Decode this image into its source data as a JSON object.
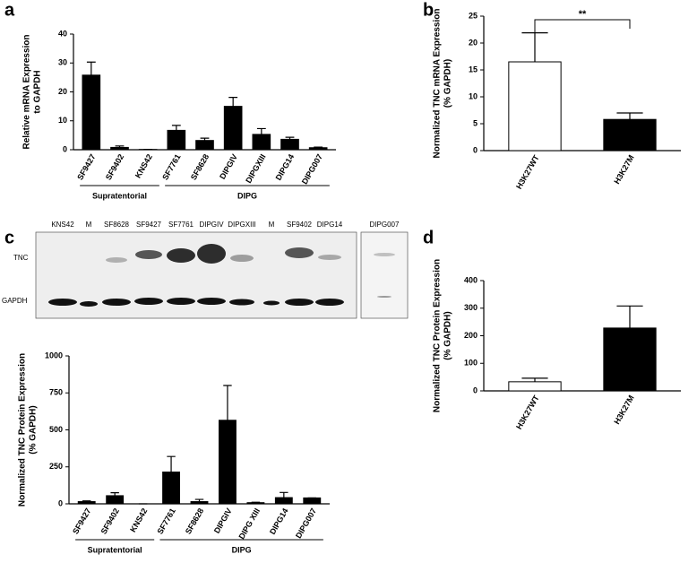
{
  "chart_data": [
    {
      "type": "bar",
      "panel": "a",
      "ylabel": [
        "Relative mRNA Expression",
        "to GAPDH"
      ],
      "categories": [
        "SF9427",
        "SF9402",
        "KNS42",
        "SF7761",
        "SF8628",
        "DIPGIV",
        "DIPGXIII",
        "DIPG14",
        "DIPG007"
      ],
      "values": [
        25.8,
        0.8,
        0.1,
        6.7,
        3.2,
        15.0,
        5.3,
        3.6,
        0.7
      ],
      "errors": [
        4.5,
        0.5,
        0,
        1.7,
        0.8,
        3.1,
        2.0,
        0.7,
        0.2
      ],
      "color": "#000000",
      "ylim": [
        0,
        40
      ],
      "yticks": [
        0,
        10,
        20,
        30,
        40
      ],
      "groups": [
        {
          "label": "Supratentorial",
          "members": [
            "SF9427",
            "SF9402",
            "KNS42"
          ]
        },
        {
          "label": "DIPG",
          "members": [
            "SF7761",
            "SF8628",
            "DIPGIV",
            "DIPGXIII",
            "DIPG14",
            "DIPG007"
          ]
        }
      ]
    },
    {
      "type": "bar",
      "panel": "b",
      "ylabel": [
        "Normalized TNC mRNA Expression",
        "(% GAPDH)"
      ],
      "categories": [
        "H3K27WT",
        "H3K27M"
      ],
      "values": [
        16.5,
        5.8
      ],
      "errors": [
        5.4,
        1.2
      ],
      "colors": [
        "#ffffff",
        "#000000"
      ],
      "ylim": [
        0,
        25
      ],
      "yticks": [
        0,
        5,
        10,
        15,
        20,
        25
      ],
      "annotation": "**"
    },
    {
      "type": "bar",
      "panel": "c",
      "ylabel": [
        "Normalized TNC Protein Expression",
        "(% GAPDH)"
      ],
      "categories": [
        "SF9427",
        "SF9402",
        "KNS42",
        "SF7761",
        "SF8628",
        "DIPGIV",
        "DIPG XIII",
        "DIPG14",
        "DIPG007"
      ],
      "values": [
        15,
        55,
        0,
        215,
        15,
        565,
        8,
        42,
        40
      ],
      "errors": [
        5,
        20,
        0,
        105,
        15,
        235,
        3,
        35,
        0
      ],
      "color": "#000000",
      "ylim": [
        0,
        1000
      ],
      "yticks": [
        0,
        250,
        500,
        750,
        1000
      ],
      "groups": [
        {
          "label": "Supratentorial",
          "members": [
            "SF9427",
            "SF9402",
            "KNS42"
          ]
        },
        {
          "label": "DIPG",
          "members": [
            "SF7761",
            "SF8628",
            "DIPGIV",
            "DIPG XIII",
            "DIPG14",
            "DIPG007"
          ]
        }
      ]
    },
    {
      "type": "bar",
      "panel": "d",
      "ylabel": [
        "Normalized TNC Protein Expression",
        "(% GAPDH)"
      ],
      "categories": [
        "H3K27WT",
        "H3K27M"
      ],
      "values": [
        33,
        228
      ],
      "errors": [
        13,
        80
      ],
      "colors": [
        "#ffffff",
        "#000000"
      ],
      "ylim": [
        0,
        400
      ],
      "yticks": [
        0,
        100,
        200,
        300,
        400
      ]
    }
  ],
  "blot": {
    "lanes": [
      "KNS42",
      "M",
      "SF8628",
      "SF9427",
      "SF7761",
      "DIPGIV",
      "DIPGXIII",
      "M",
      "SF9402",
      "DIPG14"
    ],
    "extra_lane": "DIPG007",
    "rows": [
      "TNC",
      "GAPDH"
    ]
  }
}
